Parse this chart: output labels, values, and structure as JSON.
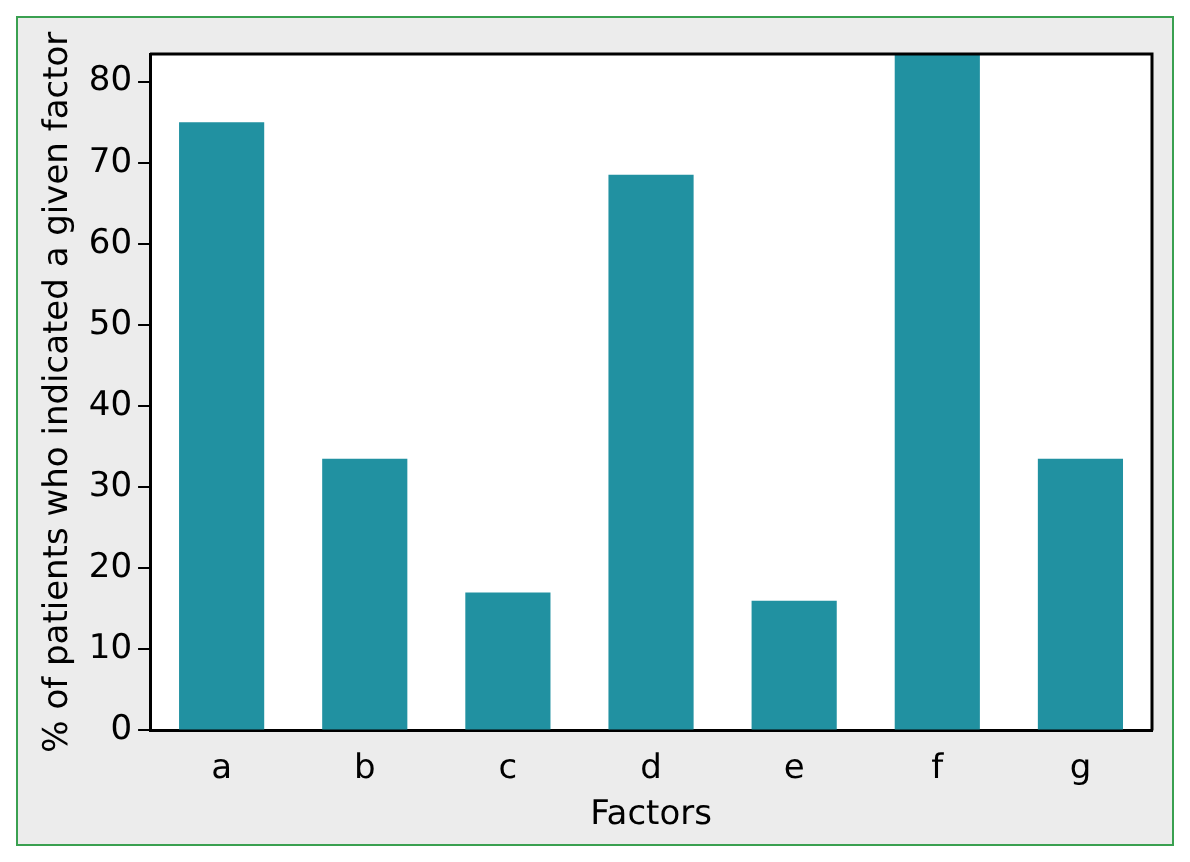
{
  "chart_data": {
    "type": "bar",
    "xlabel": "Factors",
    "ylabel": "% of patients who indicated a given factor",
    "categories": [
      "a",
      "b",
      "c",
      "d",
      "e",
      "f",
      "g"
    ],
    "values": [
      75,
      33.5,
      17,
      68.5,
      16,
      83.4,
      33.5
    ],
    "color": "#2191a1",
    "ylim": [
      0,
      83.4
    ],
    "yticks": [
      0,
      10,
      20,
      30,
      40,
      50,
      60,
      70,
      80
    ],
    "grid": false,
    "legend": false
  }
}
